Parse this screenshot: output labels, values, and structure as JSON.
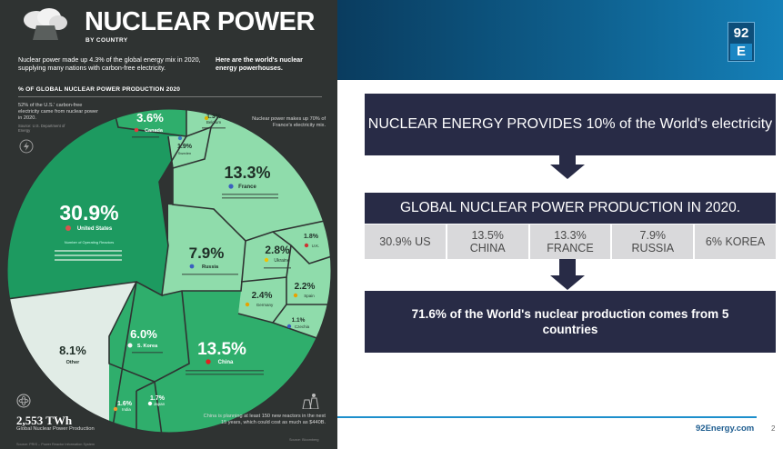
{
  "infographic": {
    "title": "NUCLEAR POWER",
    "subtitle": "BY COUNTRY",
    "intro_left": "Nuclear power made up 4.3% of the global energy mix in 2020, supplying many nations with carbon-free electricity.",
    "intro_right": "Here are the world's nuclear energy powerhouses.",
    "section_title": "% OF GLOBAL NUCLEAR POWER PRODUCTION 2020",
    "us_note": "52% of the U.S.' carbon-free electricity came from nuclear power in 2020.",
    "us_note_source": "Source: U.S. Department of Energy",
    "france_note": "Nuclear power makes up 70% of France's electricity mix.",
    "reactors_note": "Number of Operating Reactors",
    "total_value": "2,553 TWh",
    "total_label": "Global Nuclear Power Production",
    "china_note": "China is planning at least 150 new reactors in the next 15 years, which could cost as much as $440B.",
    "source": "Source: PRIS – Power Reactor Information System",
    "credit": "Source: Bloomberg",
    "colors": {
      "us": "#1d9a60",
      "mid": "#57c58a",
      "light": "#8fdcab",
      "other": "#e1ece6",
      "bg": "#2f3332"
    },
    "segments": [
      {
        "name": "United States",
        "value": "30.9%",
        "reactors": "94",
        "color": "#1d9a60"
      },
      {
        "name": "Canada",
        "value": "3.6%",
        "reactors": "19",
        "color": "#2fae6c"
      },
      {
        "name": "Belgium",
        "value": "1.3%",
        "reactors": "7",
        "color": "#8fdcab"
      },
      {
        "name": "Sweden",
        "value": "1.9%",
        "reactors": "6",
        "color": "#8fdcab"
      },
      {
        "name": "France",
        "value": "13.3%",
        "reactors": "56",
        "color": "#8fdcab"
      },
      {
        "name": "U.K.",
        "value": "1.8%",
        "reactors": "15",
        "color": "#8fdcab"
      },
      {
        "name": "Ukraine",
        "value": "2.8%",
        "reactors": "15",
        "color": "#8fdcab"
      },
      {
        "name": "Russia",
        "value": "7.9%",
        "reactors": "38",
        "color": "#8fdcab"
      },
      {
        "name": "Spain",
        "value": "2.2%",
        "reactors": "7",
        "color": "#8fdcab"
      },
      {
        "name": "Germany",
        "value": "2.4%",
        "reactors": "6",
        "color": "#8fdcab"
      },
      {
        "name": "Czechia",
        "value": "1.1%",
        "reactors": "6",
        "color": "#8fdcab"
      },
      {
        "name": "China",
        "value": "13.5%",
        "reactors": "50",
        "color": "#2fae6c"
      },
      {
        "name": "Japan",
        "value": "1.7%",
        "reactors": "33",
        "color": "#2fae6c"
      },
      {
        "name": "India",
        "value": "1.6%",
        "reactors": "22",
        "color": "#2fae6c"
      },
      {
        "name": "S. Korea",
        "value": "6.0%",
        "reactors": "24",
        "color": "#2fae6c"
      },
      {
        "name": "Other",
        "value": "8.1%",
        "reactors": "",
        "color": "#e1ece6"
      }
    ]
  },
  "slide": {
    "logo_number": "92",
    "logo_letter": "E",
    "box1": "NUCLEAR ENERGY PROVIDES 10% of the World's electricity",
    "box2": "GLOBAL NUCLEAR POWER PRODUCTION IN 2020.",
    "row": [
      {
        "line1": "30.9% US",
        "line2": ""
      },
      {
        "line1": "13.5%",
        "line2": "CHINA"
      },
      {
        "line1": "13.3%",
        "line2": "FRANCE"
      },
      {
        "line1": "7.9%",
        "line2": "RUSSIA"
      },
      {
        "line1": "6% KOREA",
        "line2": ""
      }
    ],
    "box3": "71.6% of the World's nuclear production comes from 5 countries",
    "footer_link": "92Energy.com",
    "page_number": "2",
    "colors": {
      "box": "#282b46",
      "row": "#d9d9db",
      "accent": "#1d8fcc",
      "banner": "#0e5f8d"
    }
  }
}
